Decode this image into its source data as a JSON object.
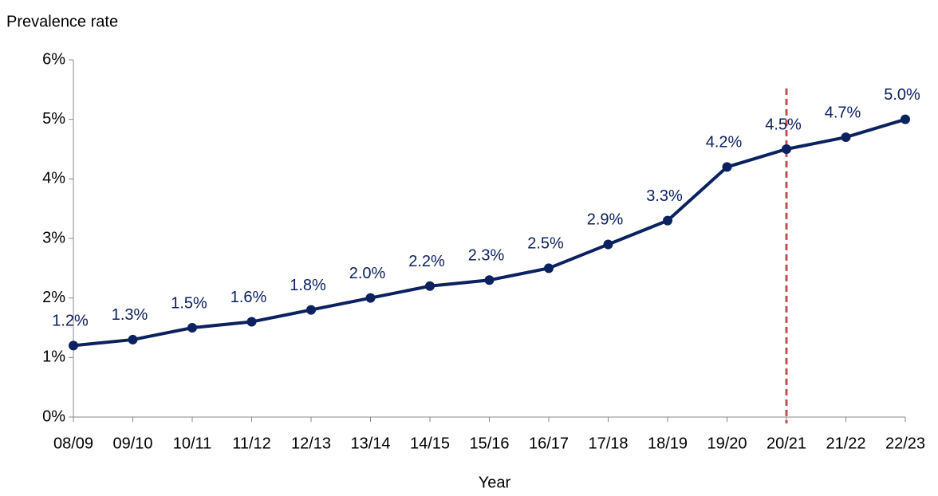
{
  "chart_data": {
    "type": "line",
    "y_label": "Prevalence rate",
    "x_label": "Year",
    "categories": [
      "08/09",
      "09/10",
      "10/11",
      "11/12",
      "12/13",
      "13/14",
      "14/15",
      "15/16",
      "16/17",
      "17/18",
      "18/19",
      "19/20",
      "20/21",
      "21/22",
      "22/23"
    ],
    "series": [
      {
        "color": "#0b2160",
        "values": [
          1.2,
          1.3,
          1.5,
          1.6,
          1.8,
          2.0,
          2.2,
          2.3,
          2.5,
          2.9,
          3.3,
          4.2,
          4.5,
          4.7,
          5.0
        ],
        "value_labels": [
          "1.2%",
          "1.3%",
          "1.5%",
          "1.6%",
          "1.8%",
          "2.0%",
          "2.2%",
          "2.3%",
          "2.5%",
          "2.9%",
          "3.3%",
          "4.2%",
          "4.5%",
          "4.7%",
          "5.0%"
        ]
      }
    ],
    "ylim": [
      0,
      6
    ],
    "yticks": [
      {
        "value": 0,
        "label": "0%"
      },
      {
        "value": 1,
        "label": "1%"
      },
      {
        "value": 2,
        "label": "2%"
      },
      {
        "value": 3,
        "label": "3%"
      },
      {
        "value": 4,
        "label": "4%"
      },
      {
        "value": 5,
        "label": "5%"
      },
      {
        "value": 6,
        "label": "6%"
      }
    ],
    "marker_line": {
      "x": "20/21",
      "color": "#c0504d"
    }
  }
}
